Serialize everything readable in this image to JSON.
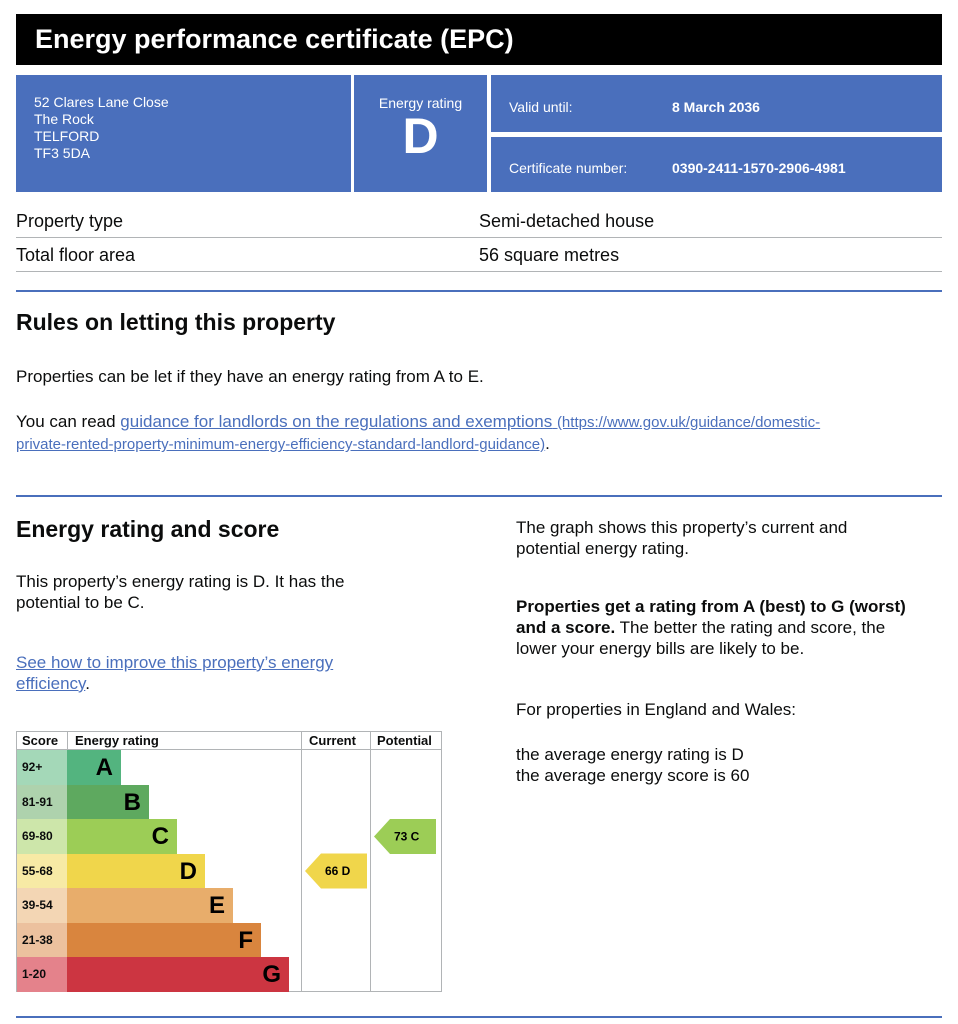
{
  "title": "Energy performance certificate (EPC)",
  "address": [
    "52 Clares Lane Close",
    "The Rock",
    "TELFORD",
    "TF3 5DA"
  ],
  "energy_rating": {
    "label": "Energy rating",
    "value": "D"
  },
  "valid_until": {
    "label": "Valid until:",
    "value": "8 March 2036"
  },
  "certificate_number": {
    "label": "Certificate number:",
    "value": "0390-2411-1570-2906-4981"
  },
  "property": [
    {
      "key": "Property type",
      "value": "Semi-detached house"
    },
    {
      "key": "Total floor area",
      "value": "56 square metres"
    }
  ],
  "rules": {
    "heading": "Rules on letting this property",
    "text1": "Properties can be let if they have an energy rating from A to E.",
    "text2_prefix": "You can read ",
    "link_text": "guidance for landlords on the regulations and exemptions",
    "link_url_a": "(https://www.gov.uk/guidance/domestic-",
    "link_url_b": "private-rented-property-minimum-energy-efficiency-standard-landlord-guidance)",
    "text2_suffix": "."
  },
  "score_section": {
    "heading": "Energy rating and score",
    "text1a": "This property’s energy rating is D. It has the",
    "text1b": "potential to be C.",
    "link_a": "See how to improve this property’s energy",
    "link_b": "efficiency",
    "link_suffix": ".",
    "right_1a": "The graph shows this property’s current and",
    "right_1b": "potential energy rating.",
    "right_2_bold_a": "Properties get a rating from A (best) to G (worst)",
    "right_2_bold_b": "and a score.",
    "right_2_rest_a": " The better the rating and score, the",
    "right_2_rest_b": "lower your energy bills are likely to be.",
    "right_3": "For properties in England and Wales:",
    "right_4a": "the average energy rating is D",
    "right_4b": "the average energy score is 60"
  },
  "chart_data": {
    "type": "table",
    "headers": [
      "Score",
      "Energy rating",
      "Current",
      "Potential"
    ],
    "bands": [
      {
        "letter": "A",
        "score": "92+",
        "color": "#53b47f",
        "score_bg": "#a4d8b8"
      },
      {
        "letter": "B",
        "score": "81-91",
        "color": "#5ea95f",
        "score_bg": "#aed2ad"
      },
      {
        "letter": "C",
        "score": "69-80",
        "color": "#9ccd56",
        "score_bg": "#cde6aa"
      },
      {
        "letter": "D",
        "score": "55-68",
        "color": "#f0d64b",
        "score_bg": "#f7eaa5"
      },
      {
        "letter": "E",
        "score": "39-54",
        "color": "#e8ad6b",
        "score_bg": "#f3d6b4"
      },
      {
        "letter": "F",
        "score": "21-38",
        "color": "#d9853e",
        "score_bg": "#ecc19e"
      },
      {
        "letter": "G",
        "score": "1-20",
        "color": "#cc3541",
        "score_bg": "#e4828b"
      }
    ],
    "current": {
      "score": 66,
      "letter": "D",
      "label": "66  D",
      "color": "#f0d64b"
    },
    "potential": {
      "score": 73,
      "letter": "C",
      "label": "73  C",
      "color": "#9ccd56"
    }
  }
}
